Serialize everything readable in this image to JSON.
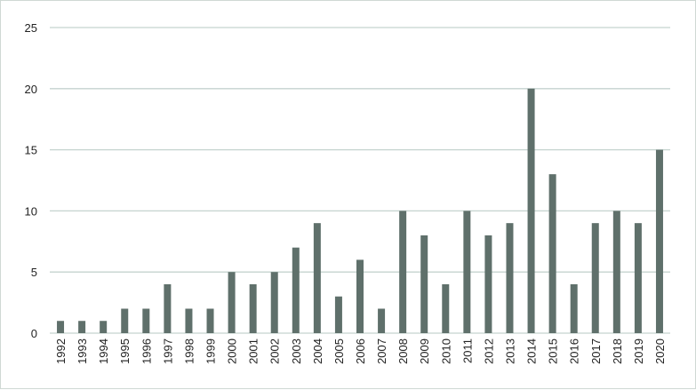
{
  "chart_data": {
    "type": "bar",
    "categories": [
      "1992",
      "1993",
      "1994",
      "1995",
      "1996",
      "1997",
      "1998",
      "1999",
      "2000",
      "2001",
      "2002",
      "2003",
      "2004",
      "2005",
      "2006",
      "2007",
      "2008",
      "2009",
      "2010",
      "2011",
      "2012",
      "2013",
      "2014",
      "2015",
      "2016",
      "2017",
      "2018",
      "2019",
      "2020"
    ],
    "values": [
      1,
      1,
      1,
      2,
      2,
      4,
      2,
      2,
      5,
      4,
      5,
      7,
      9,
      3,
      6,
      2,
      10,
      8,
      4,
      10,
      8,
      9,
      20,
      13,
      4,
      9,
      10,
      9,
      15
    ],
    "title": "",
    "xlabel": "",
    "ylabel": "",
    "ylim": [
      0,
      25
    ],
    "yticks": [
      "0",
      "5",
      "10",
      "15",
      "20",
      "25"
    ],
    "grid": true,
    "legend": "none",
    "colors": {
      "bar": "#5f706b",
      "grid": "#c5d3cf",
      "axis": "#c5d3cf",
      "text": "#222222"
    }
  }
}
